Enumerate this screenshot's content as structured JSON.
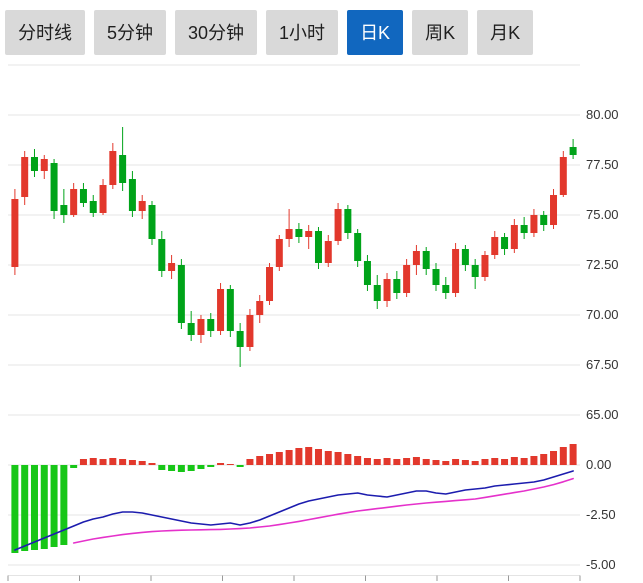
{
  "tabs": [
    {
      "label": "分时线",
      "active": false
    },
    {
      "label": "5分钟",
      "active": false
    },
    {
      "label": "30分钟",
      "active": false
    },
    {
      "label": "1小时",
      "active": false
    },
    {
      "label": "日K",
      "active": true
    },
    {
      "label": "周K",
      "active": false
    },
    {
      "label": "月K",
      "active": false
    }
  ],
  "colors": {
    "up": "#e2382c",
    "down": "#00a319",
    "hist_up": "#e2382c",
    "hist_down": "#17c617",
    "dif_line": "#1c1cae",
    "dea_line": "#e531cb",
    "grid": "#e4e4e4",
    "axis_text": "#333333",
    "axis_tick": "#999999",
    "tab_bg": "#d9d9d9",
    "tab_active_bg": "#1167bf",
    "tab_text": "#1f1f1f",
    "tab_active_text": "#ffffff"
  },
  "chart_data": {
    "type": "candlestick",
    "title": "",
    "legend": "none",
    "grid": true,
    "price_panel": {
      "ylim": [
        64.3,
        82.5
      ],
      "grid_values": [
        82.5,
        80,
        77.5,
        75,
        72.5,
        70,
        67.5,
        65
      ],
      "tick_values": [
        80,
        77.5,
        75,
        72.5,
        70,
        67.5,
        65
      ],
      "tick_labels": [
        "80.00",
        "77.50",
        "75.00",
        "72.50",
        "70.00",
        "67.50",
        "65.00"
      ],
      "candles_ohlc": [
        [
          72.4,
          76.3,
          72.0,
          75.8
        ],
        [
          75.9,
          78.2,
          75.5,
          77.9
        ],
        [
          77.9,
          78.3,
          76.9,
          77.2
        ],
        [
          77.2,
          78.0,
          76.8,
          77.8
        ],
        [
          77.6,
          77.8,
          74.8,
          75.2
        ],
        [
          75.5,
          76.3,
          74.6,
          75.0
        ],
        [
          75.0,
          76.6,
          74.9,
          76.3
        ],
        [
          76.3,
          76.6,
          75.4,
          75.6
        ],
        [
          75.7,
          76.0,
          74.9,
          75.1
        ],
        [
          75.1,
          76.8,
          75.0,
          76.5
        ],
        [
          76.5,
          78.6,
          76.3,
          78.2
        ],
        [
          78.0,
          79.4,
          76.2,
          76.6
        ],
        [
          76.8,
          77.2,
          74.9,
          75.2
        ],
        [
          75.2,
          76.0,
          74.8,
          75.7
        ],
        [
          75.5,
          75.7,
          73.5,
          73.8
        ],
        [
          73.8,
          74.2,
          71.9,
          72.2
        ],
        [
          72.2,
          73.0,
          71.8,
          72.6
        ],
        [
          72.5,
          72.8,
          69.3,
          69.6
        ],
        [
          69.6,
          70.2,
          68.7,
          69.0
        ],
        [
          69.0,
          70.0,
          68.6,
          69.8
        ],
        [
          69.8,
          70.1,
          68.9,
          69.2
        ],
        [
          69.2,
          71.6,
          69.0,
          71.3
        ],
        [
          71.3,
          71.5,
          68.9,
          69.2
        ],
        [
          69.2,
          69.6,
          67.4,
          68.4
        ],
        [
          68.4,
          70.3,
          68.2,
          70.0
        ],
        [
          70.0,
          71.0,
          69.6,
          70.7
        ],
        [
          70.7,
          72.6,
          70.5,
          72.4
        ],
        [
          72.4,
          74.0,
          72.2,
          73.8
        ],
        [
          73.8,
          75.3,
          73.4,
          74.3
        ],
        [
          74.3,
          74.6,
          73.6,
          73.9
        ],
        [
          73.9,
          74.5,
          73.3,
          74.2
        ],
        [
          74.2,
          74.4,
          72.3,
          72.6
        ],
        [
          72.6,
          74.0,
          72.4,
          73.7
        ],
        [
          73.7,
          75.6,
          73.5,
          75.3
        ],
        [
          75.3,
          75.5,
          73.8,
          74.1
        ],
        [
          74.1,
          74.3,
          72.4,
          72.7
        ],
        [
          72.7,
          73.0,
          71.2,
          71.5
        ],
        [
          71.5,
          72.0,
          70.3,
          70.7
        ],
        [
          70.7,
          72.1,
          70.4,
          71.8
        ],
        [
          71.8,
          72.2,
          70.8,
          71.1
        ],
        [
          71.1,
          72.8,
          70.9,
          72.5
        ],
        [
          72.5,
          73.5,
          72.0,
          73.2
        ],
        [
          73.2,
          73.4,
          72.0,
          72.3
        ],
        [
          72.3,
          72.6,
          71.2,
          71.5
        ],
        [
          71.5,
          71.9,
          70.8,
          71.1
        ],
        [
          71.1,
          73.6,
          70.9,
          73.3
        ],
        [
          73.3,
          73.5,
          72.2,
          72.5
        ],
        [
          72.5,
          72.8,
          71.3,
          71.9
        ],
        [
          71.9,
          73.2,
          71.7,
          73.0
        ],
        [
          73.0,
          74.2,
          72.8,
          73.9
        ],
        [
          73.9,
          74.1,
          73.0,
          73.3
        ],
        [
          73.3,
          74.8,
          73.1,
          74.5
        ],
        [
          74.5,
          74.9,
          73.8,
          74.1
        ],
        [
          74.1,
          75.3,
          73.9,
          75.0
        ],
        [
          75.0,
          75.2,
          74.2,
          74.5
        ],
        [
          74.5,
          76.3,
          74.3,
          76.0
        ],
        [
          76.0,
          78.2,
          75.9,
          77.9
        ],
        [
          78.4,
          78.8,
          77.8,
          78.0
        ]
      ]
    },
    "macd_panel": {
      "ylim": [
        -5.6,
        1.3
      ],
      "grid_values": [
        0,
        -2.5,
        -5
      ],
      "tick_values": [
        0,
        -2.5,
        -5
      ],
      "tick_labels": [
        "0.00",
        "-2.50",
        "-5.00"
      ],
      "histogram": [
        -4.4,
        -4.3,
        -4.25,
        -4.2,
        -4.1,
        -4.0,
        -0.15,
        0.3,
        0.35,
        0.3,
        0.35,
        0.3,
        0.25,
        0.2,
        0.1,
        -0.25,
        -0.3,
        -0.35,
        -0.3,
        -0.2,
        -0.1,
        0.1,
        0.05,
        -0.1,
        0.3,
        0.45,
        0.55,
        0.65,
        0.75,
        0.85,
        0.9,
        0.8,
        0.7,
        0.65,
        0.55,
        0.45,
        0.35,
        0.3,
        0.35,
        0.3,
        0.35,
        0.4,
        0.3,
        0.25,
        0.2,
        0.3,
        0.25,
        0.2,
        0.3,
        0.35,
        0.3,
        0.4,
        0.35,
        0.45,
        0.55,
        0.7,
        0.9,
        1.05
      ],
      "dif": [
        -4.25,
        -4.05,
        -3.85,
        -3.65,
        -3.45,
        -3.25,
        -3.05,
        -2.85,
        -2.7,
        -2.6,
        -2.45,
        -2.35,
        -2.35,
        -2.4,
        -2.5,
        -2.6,
        -2.7,
        -2.8,
        -2.9,
        -2.95,
        -3.0,
        -2.95,
        -2.9,
        -3.0,
        -2.9,
        -2.75,
        -2.55,
        -2.35,
        -2.15,
        -1.95,
        -1.8,
        -1.7,
        -1.6,
        -1.5,
        -1.45,
        -1.4,
        -1.5,
        -1.55,
        -1.6,
        -1.5,
        -1.4,
        -1.3,
        -1.3,
        -1.4,
        -1.45,
        -1.35,
        -1.25,
        -1.2,
        -1.15,
        -1.05,
        -1.0,
        -0.95,
        -0.9,
        -0.85,
        -0.75,
        -0.6,
        -0.45,
        -0.3
      ],
      "dea": [
        null,
        null,
        null,
        null,
        null,
        null,
        -3.9,
        -3.8,
        -3.7,
        -3.62,
        -3.55,
        -3.48,
        -3.42,
        -3.37,
        -3.33,
        -3.3,
        -3.28,
        -3.26,
        -3.25,
        -3.24,
        -3.23,
        -3.22,
        -3.2,
        -3.18,
        -3.15,
        -3.1,
        -3.05,
        -2.98,
        -2.9,
        -2.82,
        -2.73,
        -2.64,
        -2.55,
        -2.46,
        -2.38,
        -2.3,
        -2.24,
        -2.18,
        -2.12,
        -2.06,
        -2.0,
        -1.95,
        -1.9,
        -1.86,
        -1.82,
        -1.78,
        -1.74,
        -1.7,
        -1.62,
        -1.54,
        -1.46,
        -1.38,
        -1.3,
        -1.2,
        -1.1,
        -0.98,
        -0.84,
        -0.68
      ]
    }
  }
}
